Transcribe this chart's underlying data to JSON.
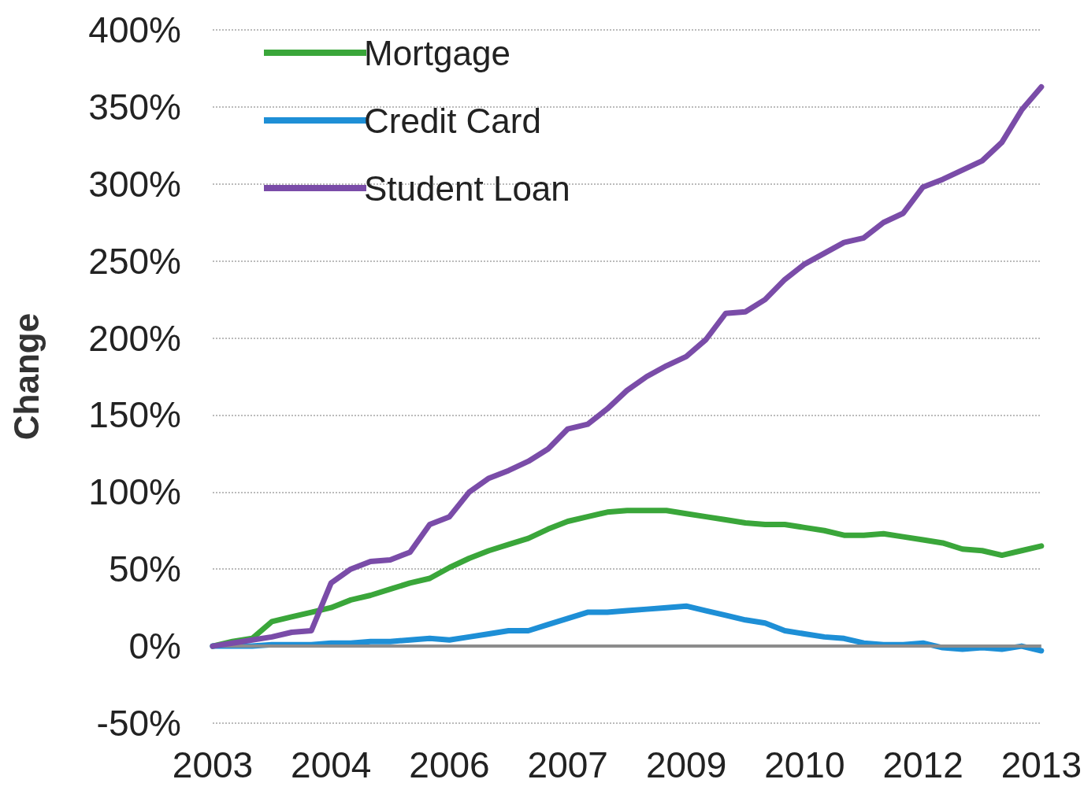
{
  "chart_data": {
    "type": "line",
    "ylabel": "Change",
    "categories": [
      "2003",
      null,
      null,
      null,
      null,
      null,
      "2004",
      null,
      null,
      null,
      null,
      null,
      "2006",
      null,
      null,
      null,
      null,
      null,
      "2007",
      null,
      null,
      null,
      null,
      null,
      "2009",
      null,
      null,
      null,
      null,
      null,
      "2010",
      null,
      null,
      null,
      null,
      null,
      "2012",
      null,
      null,
      null,
      null,
      null,
      "2013"
    ],
    "series": [
      {
        "name": "Mortgage",
        "color": "#3aa63a",
        "values": [
          0,
          3,
          5,
          16,
          19,
          22,
          25,
          30,
          33,
          37,
          41,
          44,
          51,
          57,
          62,
          66,
          70,
          76,
          81,
          84,
          87,
          88,
          88,
          88,
          86,
          84,
          82,
          80,
          79,
          79,
          77,
          75,
          72,
          72,
          73,
          71,
          69,
          67,
          63,
          62,
          59,
          62,
          65
        ]
      },
      {
        "name": "Credit Card",
        "color": "#1e8fd6",
        "values": [
          0,
          0,
          0,
          1,
          1,
          1,
          2,
          2,
          3,
          3,
          4,
          5,
          4,
          6,
          8,
          10,
          10,
          14,
          18,
          22,
          22,
          23,
          24,
          25,
          26,
          23,
          20,
          17,
          15,
          10,
          8,
          6,
          5,
          2,
          1,
          1,
          2,
          -1,
          -2,
          -1,
          -2,
          0,
          -3
        ]
      },
      {
        "name": "Student Loan",
        "color": "#7a4ca8",
        "values": [
          0,
          2,
          4,
          6,
          9,
          10,
          41,
          50,
          55,
          56,
          61,
          79,
          84,
          100,
          109,
          114,
          120,
          128,
          141,
          144,
          154,
          166,
          175,
          182,
          188,
          199,
          216,
          217,
          225,
          238,
          248,
          255,
          262,
          265,
          275,
          281,
          298,
          303,
          309,
          315,
          327,
          348,
          363
        ]
      }
    ],
    "ylim": [
      -50,
      400
    ],
    "yticks": [
      {
        "value": -50,
        "label": "-50%"
      },
      {
        "value": 0,
        "label": "0%"
      },
      {
        "value": 50,
        "label": "50%"
      },
      {
        "value": 100,
        "label": "100%"
      },
      {
        "value": 150,
        "label": "150%"
      },
      {
        "value": 200,
        "label": "200%"
      },
      {
        "value": 250,
        "label": "250%"
      },
      {
        "value": 300,
        "label": "300%"
      },
      {
        "value": 350,
        "label": "350%"
      },
      {
        "value": 400,
        "label": "400%"
      }
    ],
    "ref_lines": [
      {
        "axis": "y",
        "value": 0,
        "color": "#8c8c8c"
      }
    ],
    "grid": "y",
    "legend": "top left",
    "marker": "none",
    "line_style": "solid"
  }
}
